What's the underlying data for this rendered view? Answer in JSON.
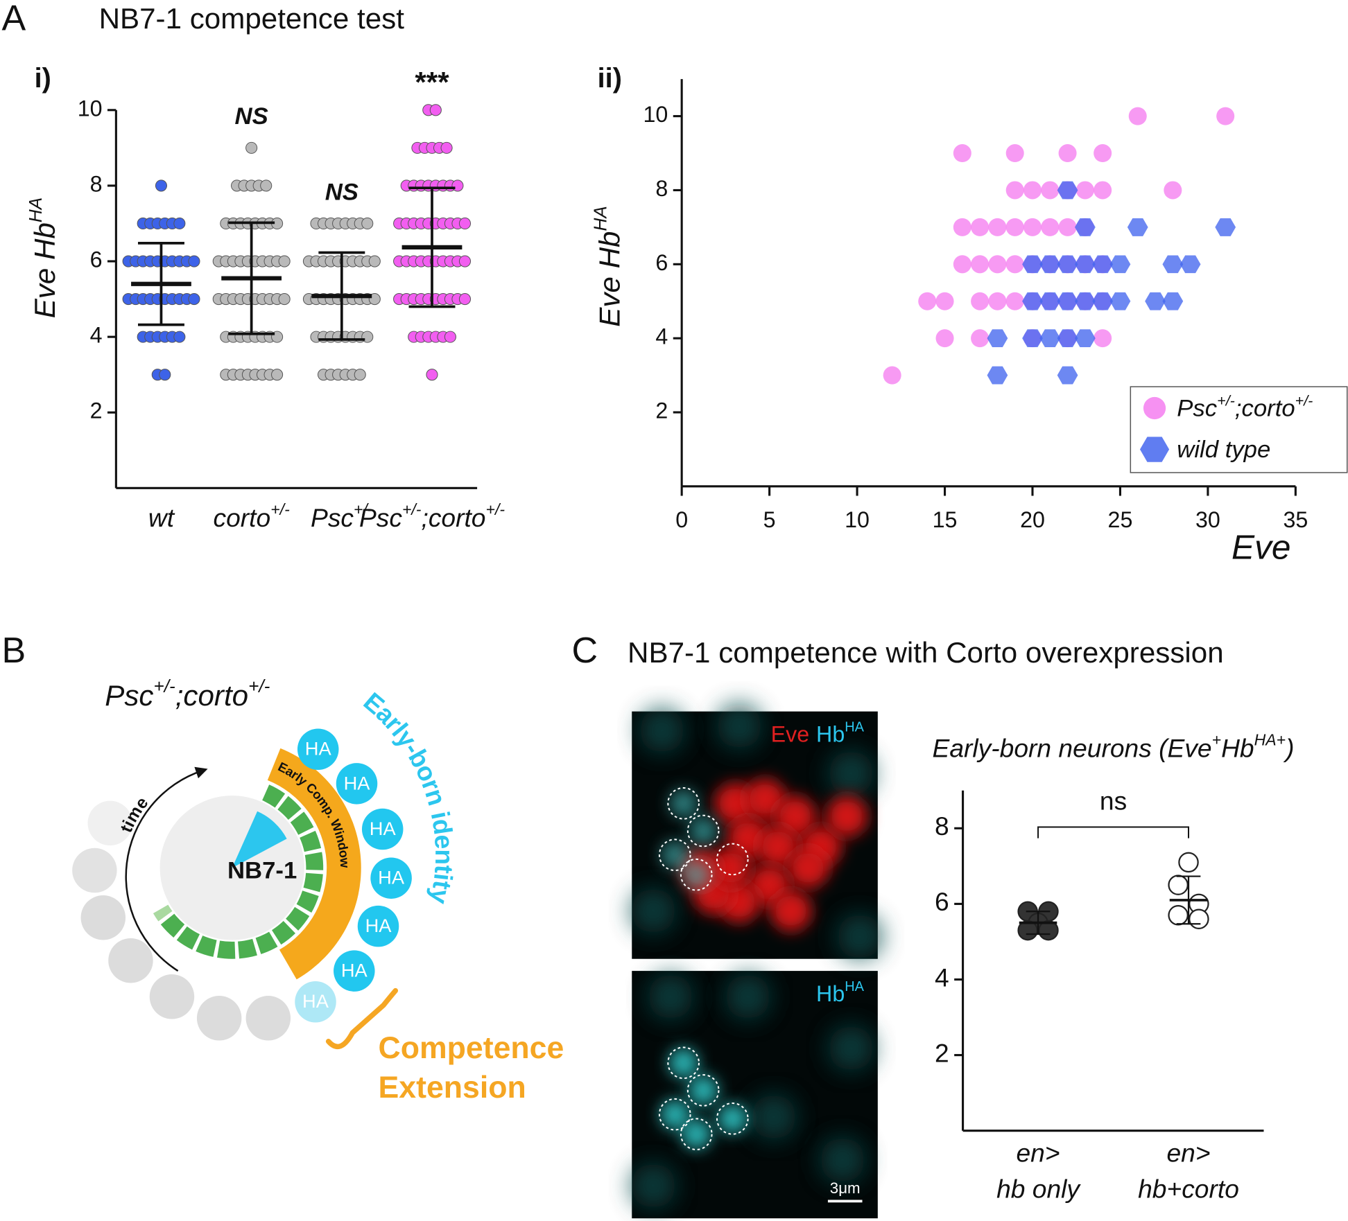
{
  "panel_a": {
    "label": "A",
    "title": "NB7-1 competence test"
  },
  "panel_b": {
    "label": "B",
    "genotype": [
      "Psc",
      "+/-",
      ";corto",
      "+/-"
    ],
    "arc_label": "Early-born identity",
    "time": "time",
    "center": "NB7-1",
    "window": "Early Comp. Window",
    "cells": [
      "HA",
      "HA",
      "HA",
      "HA",
      "HA",
      "HA",
      "HA"
    ],
    "extension": [
      "Competence",
      "Extension"
    ]
  },
  "panel_c": {
    "label": "C",
    "title": "NB7-1 competence with Corto overexpression",
    "image_label_eve": "Eve",
    "image_label_hb": [
      "Hb",
      "HA"
    ],
    "image_label_hb_bottom": [
      "Hb",
      "HA"
    ],
    "scale_bar": "3μm"
  },
  "chart_data": [
    {
      "type": "dot",
      "panel_label": "i)",
      "y_label": [
        "Eve Hb",
        "HA"
      ],
      "categories": [
        [
          "wt"
        ],
        [
          "corto",
          "+/-"
        ],
        [
          "Psc",
          "+/-"
        ],
        [
          "Psc",
          "+/-",
          ";corto",
          "+/-"
        ]
      ],
      "groups": [
        {
          "color": "#3d63e8",
          "mean": 5.4,
          "sd": 1.08,
          "values": [
            8,
            7,
            7,
            7,
            7,
            7,
            7,
            6,
            6,
            6,
            6,
            6,
            6,
            6,
            6,
            6,
            6,
            5,
            5,
            5,
            5,
            5,
            5,
            5,
            5,
            5,
            5,
            4,
            4,
            4,
            4,
            4,
            4,
            3,
            3
          ]
        },
        {
          "color": "#b9b9b9",
          "mean": 5.55,
          "sd": 1.47,
          "values": [
            9,
            8,
            8,
            8,
            8,
            8,
            7,
            7,
            7,
            7,
            7,
            7,
            7,
            7,
            6,
            6,
            6,
            6,
            6,
            6,
            6,
            6,
            6,
            6,
            5,
            5,
            5,
            5,
            5,
            5,
            5,
            5,
            5,
            5,
            4,
            4,
            4,
            4,
            4,
            4,
            4,
            4,
            3,
            3,
            3,
            3,
            3,
            3,
            3,
            3
          ]
        },
        {
          "color": "#b9b9b9",
          "mean": 5.08,
          "sd": 1.15,
          "values": [
            7,
            7,
            7,
            7,
            7,
            7,
            7,
            7,
            6,
            6,
            6,
            6,
            6,
            6,
            6,
            6,
            6,
            6,
            5,
            5,
            5,
            5,
            5,
            5,
            5,
            5,
            5,
            5,
            4,
            4,
            4,
            4,
            4,
            4,
            4,
            4,
            3,
            3,
            3,
            3,
            3,
            3
          ]
        },
        {
          "color": "#f25ef0",
          "mean": 6.37,
          "sd": 1.57,
          "values": [
            10,
            10,
            9,
            9,
            9,
            9,
            9,
            8,
            8,
            8,
            8,
            8,
            8,
            8,
            8,
            7,
            7,
            7,
            7,
            7,
            7,
            7,
            7,
            7,
            7,
            6,
            6,
            6,
            6,
            6,
            6,
            6,
            6,
            6,
            6,
            5,
            5,
            5,
            5,
            5,
            5,
            5,
            5,
            5,
            5,
            4,
            4,
            4,
            4,
            4,
            4,
            3
          ]
        }
      ],
      "annotations": [
        null,
        "NS",
        "NS",
        "***"
      ],
      "ylim": [
        0,
        10
      ],
      "yticks": [
        2,
        4,
        6,
        8,
        10
      ]
    },
    {
      "type": "scatter",
      "panel_label": "ii)",
      "x_label": "Eve",
      "y_label": [
        "Eve Hb",
        "HA"
      ],
      "series": [
        {
          "name": [
            "Psc",
            "+/-",
            ";corto",
            "+/-"
          ],
          "color": "#f57ef0",
          "marker": "circle",
          "x": [
            26,
            31,
            16,
            19,
            22,
            24,
            19,
            20,
            21,
            22,
            23,
            24,
            28,
            16,
            17,
            18,
            19,
            20,
            21,
            22,
            23,
            16,
            17,
            18,
            19,
            20,
            21,
            22,
            23,
            24,
            14,
            15,
            17,
            18,
            19,
            20,
            21,
            22,
            23,
            24,
            15,
            17,
            20,
            22,
            24,
            12
          ],
          "values": [
            10,
            10,
            9,
            9,
            9,
            9,
            8,
            8,
            8,
            8,
            8,
            8,
            8,
            7,
            7,
            7,
            7,
            7,
            7,
            7,
            7,
            6,
            6,
            6,
            6,
            6,
            6,
            6,
            6,
            6,
            5,
            5,
            5,
            5,
            5,
            5,
            5,
            5,
            5,
            5,
            4,
            4,
            4,
            4,
            4,
            3
          ]
        },
        {
          "name": [
            "wild type"
          ],
          "color": "#4466ee",
          "marker": "hexagon",
          "x": [
            22,
            23,
            26,
            31,
            20,
            21,
            22,
            23,
            24,
            25,
            28,
            29,
            20,
            21,
            22,
            23,
            24,
            25,
            27,
            28,
            18,
            20,
            21,
            22,
            23,
            18,
            22
          ],
          "values": [
            8,
            7,
            7,
            7,
            6,
            6,
            6,
            6,
            6,
            6,
            6,
            6,
            5,
            5,
            5,
            5,
            5,
            5,
            5,
            5,
            4,
            4,
            4,
            4,
            4,
            3,
            3
          ]
        }
      ],
      "xlim": [
        0,
        35
      ],
      "xticks": [
        0,
        5,
        10,
        15,
        20,
        25,
        30,
        35
      ],
      "ylim": [
        0,
        11
      ],
      "yticks": [
        2,
        4,
        6,
        8,
        10
      ],
      "legend": "lower right"
    },
    {
      "type": "dot",
      "title": [
        "Early-born neurons (Eve",
        "+",
        "Hb",
        "HA+",
        ")"
      ],
      "categories": [
        "en>\nhb only",
        "en>\nhb+corto"
      ],
      "groups": [
        {
          "color": "#333333",
          "fill": "#333333",
          "mean": 5.5,
          "sd": 0.3,
          "values": [
            5.8,
            5.8,
            5.5,
            5.3,
            5.3
          ]
        },
        {
          "color": "#333333",
          "fill": "#ffffff",
          "mean": 6.1,
          "sd": 0.63,
          "values": [
            7.1,
            6.5,
            6.0,
            5.7,
            5.6
          ]
        }
      ],
      "annotation": "ns",
      "ylim": [
        0,
        9
      ],
      "yticks": [
        2,
        4,
        6,
        8
      ]
    }
  ]
}
